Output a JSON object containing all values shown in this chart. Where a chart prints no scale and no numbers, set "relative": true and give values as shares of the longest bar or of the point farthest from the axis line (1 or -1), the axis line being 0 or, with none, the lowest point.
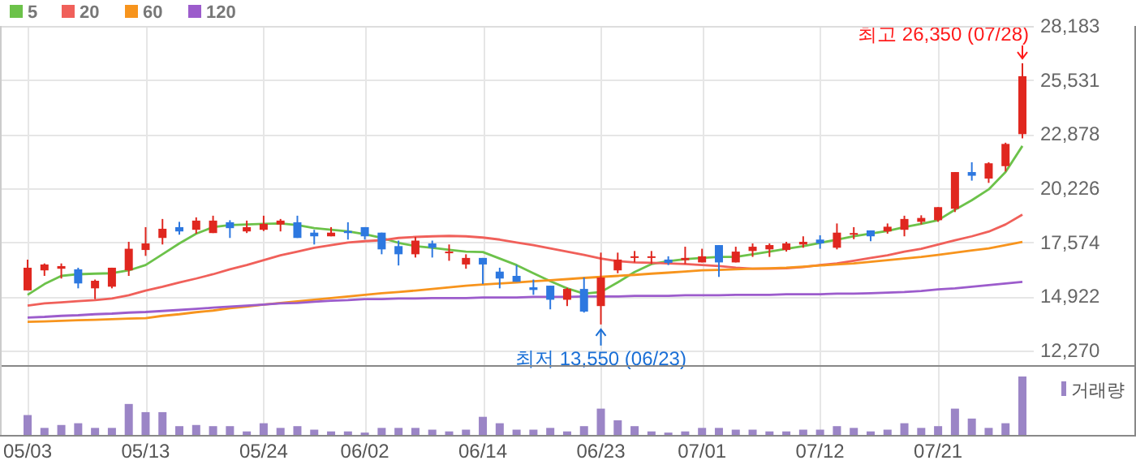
{
  "chart_data": [
    {
      "type": "candlestick",
      "categories": [
        "05/03",
        null,
        null,
        null,
        null,
        null,
        null,
        "05/13",
        null,
        null,
        null,
        null,
        null,
        null,
        "05/24",
        null,
        null,
        null,
        null,
        null,
        "06/02",
        null,
        null,
        null,
        null,
        null,
        null,
        "06/14",
        null,
        null,
        null,
        null,
        null,
        null,
        "06/23",
        null,
        null,
        null,
        null,
        null,
        "07/01",
        null,
        null,
        null,
        null,
        null,
        null,
        "07/12",
        null,
        null,
        null,
        null,
        null,
        null,
        "07/21",
        null,
        null,
        null,
        null,
        null
      ],
      "ohlc": [
        [
          15220,
          16730,
          15220,
          16330
        ],
        [
          16200,
          16540,
          15930,
          16490
        ],
        [
          16280,
          16540,
          15800,
          16410
        ],
        [
          16250,
          16330,
          15320,
          15560
        ],
        [
          15320,
          15750,
          14790,
          15690
        ],
        [
          15400,
          16330,
          15320,
          16330
        ],
        [
          16200,
          17600,
          15930,
          17260
        ],
        [
          17200,
          18320,
          16910,
          17520
        ],
        [
          17790,
          18720,
          17470,
          18240
        ],
        [
          18320,
          18580,
          17950,
          18110
        ],
        [
          18190,
          18800,
          18000,
          18640
        ],
        [
          18030,
          18880,
          18030,
          18640
        ],
        [
          18560,
          18660,
          17790,
          18270
        ],
        [
          18110,
          18640,
          18030,
          18320
        ],
        [
          18190,
          18880,
          18130,
          18480
        ],
        [
          18450,
          18720,
          18110,
          18640
        ],
        [
          18560,
          18880,
          17790,
          17790
        ],
        [
          18050,
          18190,
          17470,
          17870
        ],
        [
          17870,
          18320,
          17870,
          18050
        ],
        [
          18130,
          18560,
          17710,
          18030
        ],
        [
          18320,
          18320,
          17710,
          17870
        ],
        [
          18050,
          18050,
          16990,
          17230
        ],
        [
          17390,
          17660,
          16440,
          16990
        ],
        [
          16990,
          17840,
          16830,
          17660
        ],
        [
          17520,
          17660,
          16830,
          17310
        ],
        [
          17070,
          17470,
          16670,
          17120
        ],
        [
          16490,
          16990,
          16280,
          16810
        ],
        [
          16810,
          16810,
          15530,
          16490
        ],
        [
          16140,
          16330,
          15320,
          15800
        ],
        [
          15930,
          16460,
          15640,
          15640
        ],
        [
          15370,
          15750,
          15000,
          15240
        ],
        [
          15450,
          15450,
          14290,
          14760
        ],
        [
          14760,
          15350,
          14450,
          15290
        ],
        [
          15290,
          15850,
          14130,
          14180
        ],
        [
          14450,
          17070,
          13550,
          15850
        ],
        [
          16200,
          17070,
          16060,
          16730
        ],
        [
          16830,
          17150,
          16590,
          16890
        ],
        [
          16830,
          17150,
          16510,
          16890
        ],
        [
          16730,
          16890,
          16460,
          16570
        ],
        [
          16700,
          17360,
          16510,
          16810
        ],
        [
          16590,
          17260,
          16590,
          16890
        ],
        [
          17440,
          17440,
          15880,
          16590
        ],
        [
          16590,
          17360,
          16590,
          17120
        ],
        [
          17150,
          17520,
          16860,
          17360
        ],
        [
          17230,
          17520,
          16860,
          17440
        ],
        [
          17200,
          17600,
          17120,
          17520
        ],
        [
          17470,
          17870,
          17310,
          17600
        ],
        [
          17710,
          17920,
          17260,
          17520
        ],
        [
          17310,
          18500,
          17230,
          18050
        ],
        [
          17950,
          18320,
          17730,
          18030
        ],
        [
          18160,
          18160,
          17630,
          17870
        ],
        [
          18110,
          18500,
          18000,
          18340
        ],
        [
          18190,
          18880,
          17870,
          18720
        ],
        [
          18580,
          18900,
          18450,
          18770
        ],
        [
          18660,
          19300,
          18580,
          19300
        ],
        [
          19220,
          21020,
          19060,
          21020
        ],
        [
          21020,
          21500,
          20600,
          20840
        ],
        [
          20700,
          21500,
          20490,
          21450
        ],
        [
          21310,
          22460,
          21050,
          22400
        ],
        [
          22880,
          26350,
          22670,
          25720
        ]
      ],
      "colors": [
        "#e0271f",
        "#e0271f",
        "#e0271f",
        "#2d78e0",
        "#e0271f",
        "#e0271f",
        "#e0271f",
        "#e0271f",
        "#e0271f",
        "#2d78e0",
        "#e0271f",
        "#e0271f",
        "#2d78e0",
        "#e0271f",
        "#e0271f",
        "#e0271f",
        "#2d78e0",
        "#2d78e0",
        "#e0271f",
        "#2d78e0",
        "#2d78e0",
        "#2d78e0",
        "#2d78e0",
        "#e0271f",
        "#2d78e0",
        "#e0271f",
        "#e0271f",
        "#2d78e0",
        "#2d78e0",
        "#2d78e0",
        "#2d78e0",
        "#2d78e0",
        "#e0271f",
        "#2d78e0",
        "#e0271f",
        "#e0271f",
        "#e0271f",
        "#e0271f",
        "#2d78e0",
        "#e0271f",
        "#e0271f",
        "#2d78e0",
        "#e0271f",
        "#e0271f",
        "#e0271f",
        "#e0271f",
        "#e0271f",
        "#2d78e0",
        "#e0271f",
        "#e0271f",
        "#2d78e0",
        "#e0271f",
        "#e0271f",
        "#e0271f",
        "#e0271f",
        "#e0271f",
        "#2d78e0",
        "#e0271f",
        "#e0271f",
        "#e0271f"
      ],
      "series": [
        {
          "name": "5",
          "type": "line",
          "color": "#6cc24a",
          "values": [
            15000,
            15530,
            15930,
            16010,
            16040,
            16060,
            16200,
            16460,
            16990,
            17520,
            18000,
            18320,
            18420,
            18450,
            18480,
            18500,
            18420,
            18270,
            18190,
            18110,
            17970,
            17790,
            17550,
            17390,
            17310,
            17210,
            17120,
            17100,
            16780,
            16460,
            16060,
            15670,
            15320,
            15060,
            15140,
            15610,
            16120,
            16510,
            16650,
            16750,
            16810,
            16860,
            16860,
            16990,
            17120,
            17260,
            17390,
            17550,
            17710,
            17870,
            18000,
            18130,
            18320,
            18480,
            18660,
            19170,
            19640,
            20170,
            21020,
            22300
          ]
        },
        {
          "name": "20",
          "type": "line",
          "color": "#f0605a",
          "values": [
            14470,
            14580,
            14630,
            14690,
            14740,
            14820,
            14980,
            15210,
            15400,
            15610,
            15800,
            16010,
            16250,
            16460,
            16700,
            16940,
            17120,
            17310,
            17440,
            17570,
            17630,
            17680,
            17790,
            17840,
            17870,
            17890,
            17870,
            17810,
            17710,
            17570,
            17440,
            17280,
            17120,
            16960,
            16780,
            16650,
            16590,
            16570,
            16540,
            16510,
            16460,
            16410,
            16330,
            16280,
            16280,
            16300,
            16360,
            16460,
            16540,
            16670,
            16810,
            16940,
            17120,
            17260,
            17470,
            17680,
            17870,
            18100,
            18450,
            18930
          ]
        },
        {
          "name": "60",
          "type": "line",
          "color": "#f7941d",
          "values": [
            13680,
            13700,
            13730,
            13760,
            13780,
            13810,
            13840,
            13860,
            13970,
            14050,
            14150,
            14230,
            14340,
            14420,
            14520,
            14600,
            14680,
            14760,
            14840,
            14920,
            15000,
            15080,
            15140,
            15210,
            15290,
            15370,
            15450,
            15510,
            15560,
            15610,
            15670,
            15720,
            15770,
            15830,
            15880,
            15930,
            15980,
            16040,
            16090,
            16140,
            16200,
            16220,
            16250,
            16280,
            16300,
            16330,
            16380,
            16440,
            16490,
            16540,
            16620,
            16700,
            16780,
            16860,
            16960,
            17070,
            17180,
            17280,
            17440,
            17600
          ]
        },
        {
          "name": "120",
          "type": "line",
          "color": "#9c5ccc",
          "values": [
            13890,
            13920,
            13970,
            14000,
            14050,
            14080,
            14130,
            14160,
            14210,
            14260,
            14310,
            14370,
            14420,
            14470,
            14520,
            14580,
            14600,
            14660,
            14710,
            14740,
            14790,
            14790,
            14820,
            14820,
            14840,
            14840,
            14840,
            14870,
            14870,
            14870,
            14900,
            14900,
            14900,
            14920,
            14920,
            14920,
            14950,
            14950,
            14950,
            14980,
            14980,
            14980,
            15000,
            15000,
            15000,
            15030,
            15030,
            15030,
            15060,
            15060,
            15080,
            15110,
            15140,
            15190,
            15270,
            15320,
            15400,
            15480,
            15560,
            15640
          ]
        }
      ],
      "ylim": [
        12270,
        28183
      ],
      "yticks": [
        {
          "value": 12270,
          "label": "12,270"
        },
        {
          "value": 14922,
          "label": "14,922"
        },
        {
          "value": 17574,
          "label": "17,574"
        },
        {
          "value": 20226,
          "label": "20,226"
        },
        {
          "value": 22878,
          "label": "22,878"
        },
        {
          "value": 25531,
          "label": "25,531"
        },
        {
          "value": 28183,
          "label": "28,183"
        }
      ],
      "grid": true,
      "legend": "top left",
      "tick_labels": "y",
      "annotations": [
        "최고 26,350 (07/28)",
        {
          "text": "최저 13,550 (06/23)",
          "x": "06/23",
          "y": 13550
        }
      ]
    },
    {
      "type": "bar",
      "categories": [
        "05/03",
        null,
        null,
        null,
        null,
        null,
        null,
        "05/13",
        null,
        null,
        null,
        null,
        null,
        null,
        "05/24",
        null,
        null,
        null,
        null,
        null,
        "06/02",
        null,
        null,
        null,
        null,
        null,
        null,
        "06/14",
        null,
        null,
        null,
        null,
        null,
        null,
        "06/23",
        null,
        null,
        null,
        null,
        null,
        "07/01",
        null,
        null,
        null,
        null,
        null,
        null,
        "07/12",
        null,
        null,
        null,
        null,
        null,
        null,
        "07/21",
        null,
        null,
        null,
        null,
        null
      ],
      "series": [
        {
          "name": "거래량",
          "color": "#9b85c6",
          "values": [
            0.34,
            0.12,
            0.17,
            0.2,
            0.12,
            0.12,
            0.53,
            0.39,
            0.39,
            0.15,
            0.17,
            0.15,
            0.15,
            0.06,
            0.2,
            0.12,
            0.15,
            0.09,
            0.06,
            0.06,
            0.04,
            0.12,
            0.12,
            0.12,
            0.09,
            0.06,
            0.09,
            0.31,
            0.2,
            0.09,
            0.09,
            0.12,
            0.06,
            0.15,
            0.45,
            0.25,
            0.15,
            0.06,
            0.04,
            0.06,
            0.12,
            0.12,
            0.09,
            0.09,
            0.06,
            0.06,
            0.09,
            0.09,
            0.15,
            0.12,
            0.06,
            0.09,
            0.2,
            0.12,
            0.15,
            0.45,
            0.28,
            0.12,
            0.2,
            1
          ]
        }
      ],
      "relative": true,
      "legend": "top right",
      "grid": "x",
      "tick_labels": "x"
    }
  ]
}
